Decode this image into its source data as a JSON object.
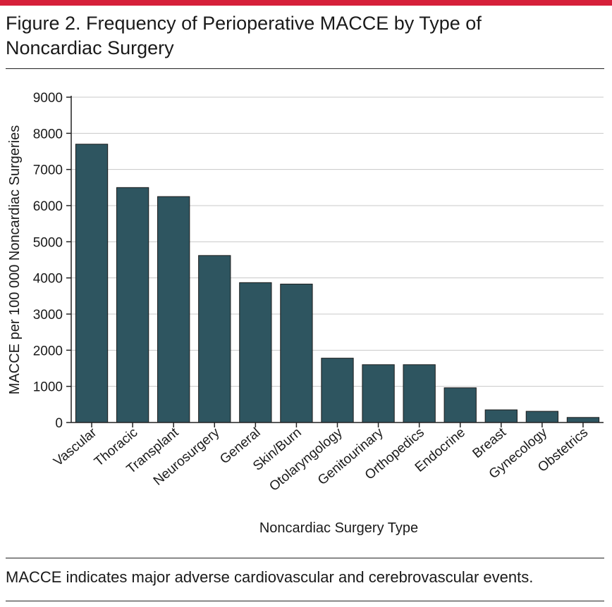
{
  "figure": {
    "title": "Figure 2. Frequency of Perioperative MACCE by Type of Noncardiac Surgery",
    "caption": "MACCE indicates major adverse cardiovascular and cerebrovascular events.",
    "accent_color": "#d6203a"
  },
  "chart_data": {
    "type": "bar",
    "title": "",
    "xlabel": "Noncardiac Surgery Type",
    "ylabel": "MACCE per 100 000 Noncardiac Surgeries",
    "ylim": [
      0,
      9000
    ],
    "yticks": [
      0,
      1000,
      2000,
      3000,
      4000,
      5000,
      6000,
      7000,
      8000,
      9000
    ],
    "grid": true,
    "bar_color": "#2e5560",
    "categories": [
      "Vascular",
      "Thoracic",
      "Transplant",
      "Neurosurgery",
      "General",
      "Skin/Burn",
      "Otolaryngology",
      "Genitourinary",
      "Orthopedics",
      "Endocrine",
      "Breast",
      "Gynecology",
      "Obstetrics"
    ],
    "values": [
      7700,
      6500,
      6250,
      4620,
      3870,
      3830,
      1780,
      1600,
      1600,
      960,
      350,
      310,
      140
    ]
  }
}
